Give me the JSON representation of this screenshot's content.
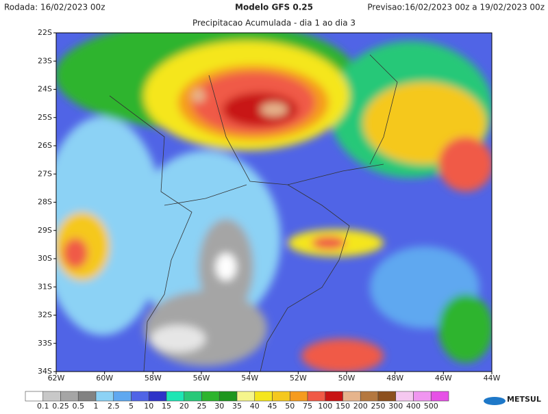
{
  "header": {
    "rodada": "Rodada: 16/02/2023 00z",
    "modelo": "Modelo GFS 0.25",
    "previsao": "Previsao:16/02/2023 00z a 19/02/2023 00z",
    "subtitle": "Precipitacao Acumulada - dia 1 ao dia 3"
  },
  "map": {
    "lat_labels": [
      "22S",
      "23S",
      "24S",
      "25S",
      "26S",
      "27S",
      "28S",
      "29S",
      "30S",
      "31S",
      "32S",
      "33S",
      "34S"
    ],
    "lon_labels": [
      "62W",
      "60W",
      "58W",
      "56W",
      "54W",
      "52W",
      "50W",
      "48W",
      "46W",
      "44W"
    ]
  },
  "legend": {
    "colors": [
      "#ffffff",
      "#c8c8c8",
      "#a5a5a5",
      "#828282",
      "#8cd2f5",
      "#5fa8f0",
      "#5064e6",
      "#2d32c8",
      "#1ee6b4",
      "#28c878",
      "#2db42d",
      "#1e961e",
      "#f5f58c",
      "#f5e61e",
      "#f5c81e",
      "#f59b1e",
      "#f05a46",
      "#c81414",
      "#e6b48c",
      "#b47840",
      "#8c501e",
      "#f5c8f0",
      "#f096f0",
      "#e650e6"
    ],
    "labels": [
      "0.1",
      "0.25",
      "0.5",
      "1",
      "2.5",
      "5",
      "10",
      "15",
      "20",
      "25",
      "30",
      "35",
      "40",
      "45",
      "50",
      "75",
      "100",
      "150",
      "200",
      "250",
      "300",
      "400",
      "500"
    ]
  },
  "logo": "METSUL"
}
